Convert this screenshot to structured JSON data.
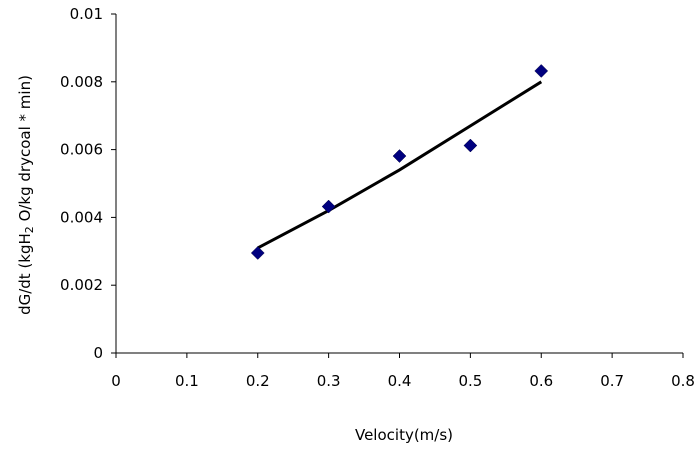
{
  "chart_data": {
    "type": "scatter",
    "title": "",
    "xlabel": "Velocity(m/s)",
    "ylabel_parts": [
      "dG/dt (kgH",
      "2",
      " O/kg drycoal ",
      "*",
      " min)"
    ],
    "xlim": [
      0,
      0.8
    ],
    "ylim": [
      0,
      0.01
    ],
    "x_ticks": [
      "0",
      "0.1",
      "0.2",
      "0.3",
      "0.4",
      "0.5",
      "0.6",
      "0.7",
      "0.8"
    ],
    "y_ticks": [
      "0",
      "0.002",
      "0.004",
      "0.006",
      "0.008",
      "0.01"
    ],
    "grid": false,
    "series": [
      {
        "marker": "diamond",
        "color": "#00007f",
        "x": [
          0.2,
          0.3,
          0.4,
          0.5,
          0.6
        ],
        "y": [
          0.00295,
          0.00432,
          0.00581,
          0.00612,
          0.00832
        ]
      }
    ],
    "trendline": {
      "type": "polynomial",
      "color": "#000000",
      "x": [
        0.2,
        0.3,
        0.4,
        0.5,
        0.6
      ],
      "y": [
        0.0031,
        0.0042,
        0.0054,
        0.0067,
        0.008
      ]
    }
  }
}
